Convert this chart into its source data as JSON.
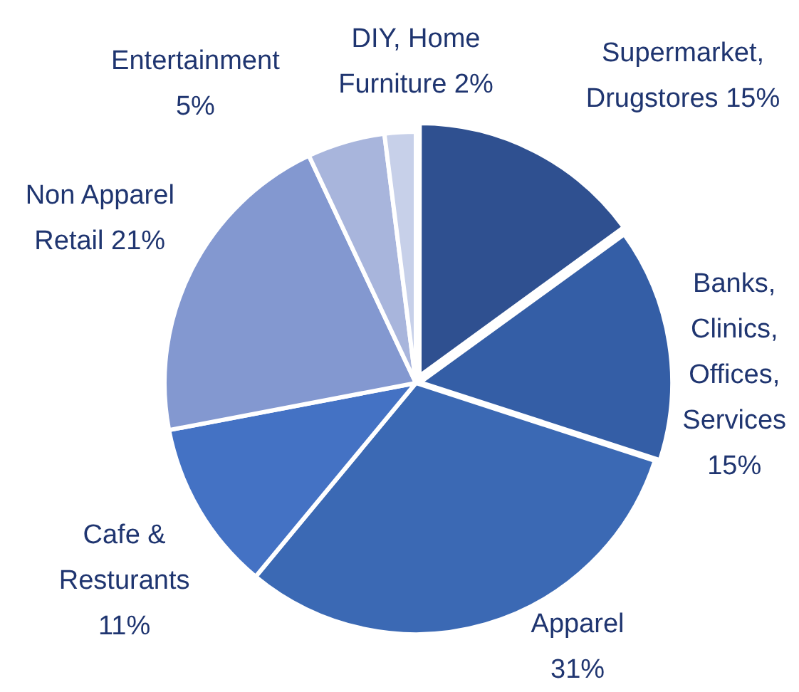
{
  "chart_data": {
    "type": "pie",
    "categories": [
      "Supermarket, Drugstores",
      "Banks, Clinics, Offices, Services",
      "Apparel",
      "Cafe & Resturants",
      "Non Apparel Retail",
      "Entertainment",
      "DIY, Home Furniture"
    ],
    "values": [
      15,
      15,
      31,
      11,
      21,
      5,
      2
    ],
    "value_labels": [
      "15%",
      "15%",
      "31%",
      "11%",
      "21%",
      "5%",
      "2%"
    ],
    "colors": [
      "#2f5090",
      "#345ea6",
      "#3b69b4",
      "#4472c4",
      "#8398d0",
      "#a8b5dc",
      "#c7d0e9"
    ]
  }
}
